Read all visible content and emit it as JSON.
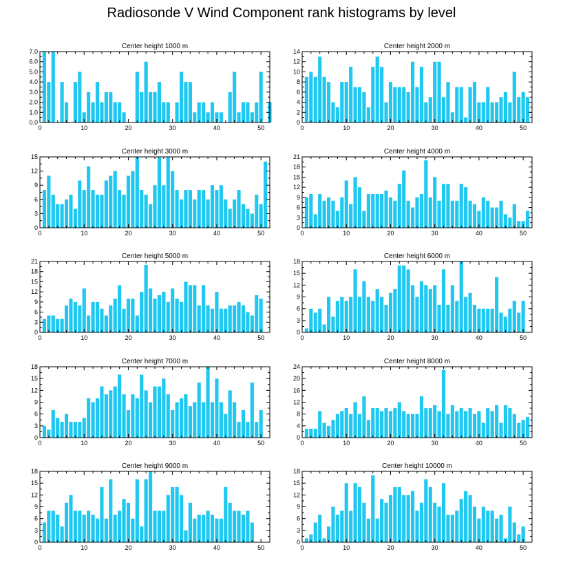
{
  "title": "Radiosonde V Wind Component rank histograms by level",
  "colors": {
    "bar": "#1ec8f0",
    "axis": "#000000"
  },
  "chart_data": [
    {
      "type": "bar",
      "title": "Center height 1000 m",
      "xlim": [
        0,
        52
      ],
      "ylim": [
        0,
        7
      ],
      "yticks": [
        0,
        1,
        2,
        3,
        4,
        5,
        6,
        7
      ],
      "ytick_labels": [
        "0.0",
        "1.0",
        "2.0",
        "3.0",
        "4.0",
        "5.0",
        "6.0",
        "7.0"
      ],
      "xticks": [
        0,
        10,
        20,
        30,
        40,
        50
      ],
      "xtick_labels": [
        "0",
        "10",
        "20",
        "30",
        "40",
        "50"
      ],
      "values": [
        0,
        7,
        4,
        7,
        0,
        4,
        2,
        0,
        4,
        5,
        1,
        3,
        2,
        4,
        2,
        3,
        3,
        2,
        2,
        1,
        0,
        0,
        5,
        3,
        6,
        3,
        3,
        4,
        2,
        2,
        0,
        2,
        5,
        4,
        4,
        1,
        2,
        2,
        1,
        2,
        1,
        1,
        0,
        3,
        5,
        1,
        2,
        2,
        1,
        2,
        5,
        0,
        2
      ]
    },
    {
      "type": "bar",
      "title": "Center height 2000 m",
      "xlim": [
        0,
        52
      ],
      "ylim": [
        0,
        14
      ],
      "yticks": [
        0,
        2,
        4,
        6,
        8,
        10,
        12,
        14
      ],
      "ytick_labels": [
        "0",
        "2",
        "4",
        "6",
        "8",
        "10",
        "12",
        "14"
      ],
      "xticks": [
        0,
        10,
        20,
        30,
        40,
        50
      ],
      "xtick_labels": [
        "0",
        "10",
        "20",
        "30",
        "40",
        "50"
      ],
      "values": [
        0,
        9,
        10,
        9,
        13,
        9,
        8,
        4,
        3,
        8,
        8,
        11,
        7,
        7,
        6,
        3,
        11,
        13,
        11,
        4,
        8,
        7,
        7,
        7,
        6,
        12,
        7,
        11,
        4,
        5,
        12,
        12,
        5,
        8,
        2,
        7,
        7,
        1,
        7,
        8,
        4,
        4,
        7,
        4,
        4,
        5,
        6,
        4,
        10,
        5,
        6,
        5,
        0
      ]
    },
    {
      "type": "bar",
      "title": "Center height 3000 m",
      "xlim": [
        0,
        52
      ],
      "ylim": [
        0,
        15
      ],
      "yticks": [
        0,
        3,
        6,
        9,
        12,
        15
      ],
      "ytick_labels": [
        "0",
        "3",
        "6",
        "9",
        "12",
        "15"
      ],
      "xticks": [
        0,
        10,
        20,
        30,
        40,
        50
      ],
      "xtick_labels": [
        "0",
        "10",
        "20",
        "30",
        "40",
        "50"
      ],
      "values": [
        0,
        8,
        11,
        7,
        5,
        5,
        6,
        7,
        4,
        10,
        8,
        13,
        8,
        7,
        7,
        10,
        11,
        12,
        8,
        7,
        11,
        12,
        15,
        8,
        7,
        5,
        9,
        15,
        9,
        15,
        12,
        8,
        6,
        8,
        8,
        6,
        8,
        8,
        6,
        9,
        8,
        9,
        6,
        4,
        6,
        8,
        5,
        4,
        3,
        7,
        5,
        14,
        0
      ]
    },
    {
      "type": "bar",
      "title": "Center height 4000 m",
      "xlim": [
        0,
        52
      ],
      "ylim": [
        0,
        21
      ],
      "yticks": [
        0,
        3,
        6,
        9,
        12,
        15,
        18,
        21
      ],
      "ytick_labels": [
        "0",
        "3",
        "6",
        "9",
        "12",
        "15",
        "18",
        "21"
      ],
      "xticks": [
        0,
        10,
        20,
        30,
        40,
        50
      ],
      "xtick_labels": [
        "0",
        "10",
        "20",
        "30",
        "40",
        "50"
      ],
      "values": [
        0,
        9,
        10,
        4,
        10,
        8,
        9,
        8,
        5,
        9,
        14,
        7,
        15,
        12,
        5,
        10,
        10,
        10,
        10,
        11,
        9,
        8,
        13,
        17,
        8,
        6,
        9,
        10,
        20,
        9,
        15,
        8,
        13,
        13,
        8,
        8,
        13,
        12,
        8,
        7,
        5,
        9,
        8,
        6,
        6,
        8,
        4,
        3,
        7,
        2,
        2,
        5,
        0
      ]
    },
    {
      "type": "bar",
      "title": "Center height 5000 m",
      "xlim": [
        0,
        52
      ],
      "ylim": [
        0,
        21
      ],
      "yticks": [
        0,
        3,
        6,
        9,
        12,
        15,
        18,
        21
      ],
      "ytick_labels": [
        "0",
        "3",
        "6",
        "9",
        "12",
        "15",
        "18",
        "21"
      ],
      "xticks": [
        0,
        10,
        20,
        30,
        40,
        50
      ],
      "xtick_labels": [
        "0",
        "10",
        "20",
        "30",
        "40",
        "50"
      ],
      "values": [
        0,
        4,
        5,
        5,
        4,
        4,
        8,
        10,
        9,
        8,
        13,
        5,
        9,
        9,
        7,
        5,
        8,
        10,
        14,
        7,
        10,
        10,
        5,
        12,
        20,
        13,
        10,
        11,
        12,
        9,
        13,
        10,
        9,
        15,
        14,
        14,
        8,
        14,
        8,
        7,
        12,
        7,
        7,
        8,
        8,
        9,
        8,
        6,
        5,
        11,
        10,
        0,
        0
      ]
    },
    {
      "type": "bar",
      "title": "Center height 6000 m",
      "xlim": [
        0,
        52
      ],
      "ylim": [
        0,
        18
      ],
      "yticks": [
        0,
        3,
        6,
        9,
        12,
        15,
        18
      ],
      "ytick_labels": [
        "0",
        "3",
        "6",
        "9",
        "12",
        "15",
        "18"
      ],
      "xticks": [
        0,
        10,
        20,
        30,
        40,
        50
      ],
      "xtick_labels": [
        "0",
        "10",
        "20",
        "30",
        "40",
        "50"
      ],
      "values": [
        0,
        1,
        6,
        5,
        6,
        2,
        9,
        4,
        8,
        9,
        8,
        9,
        16,
        9,
        13,
        9,
        8,
        11,
        9,
        7,
        10,
        11,
        17,
        17,
        16,
        12,
        9,
        13,
        12,
        11,
        12,
        7,
        16,
        7,
        12,
        8,
        18,
        9,
        10,
        7,
        6,
        6,
        6,
        6,
        14,
        5,
        4,
        6,
        8,
        5,
        8,
        0,
        0
      ]
    },
    {
      "type": "bar",
      "title": "Center height 7000 m",
      "xlim": [
        0,
        52
      ],
      "ylim": [
        0,
        18
      ],
      "yticks": [
        0,
        3,
        6,
        9,
        12,
        15,
        18
      ],
      "ytick_labels": [
        "0",
        "3",
        "6",
        "9",
        "12",
        "15",
        "18"
      ],
      "xticks": [
        0,
        10,
        20,
        30,
        40,
        50
      ],
      "xtick_labels": [
        "0",
        "10",
        "20",
        "30",
        "40",
        "50"
      ],
      "values": [
        0,
        3,
        2,
        7,
        5,
        4,
        6,
        4,
        4,
        4,
        5,
        10,
        9,
        10,
        13,
        11,
        12,
        13,
        16,
        11,
        7,
        11,
        10,
        16,
        12,
        9,
        13,
        13,
        15,
        11,
        7,
        9,
        10,
        11,
        8,
        9,
        14,
        9,
        18,
        9,
        15,
        9,
        6,
        12,
        9,
        4,
        7,
        4,
        14,
        4,
        7,
        0,
        0
      ]
    },
    {
      "type": "bar",
      "title": "Center height 8000 m",
      "xlim": [
        0,
        52
      ],
      "ylim": [
        0,
        24
      ],
      "yticks": [
        0,
        4,
        8,
        12,
        16,
        20,
        24
      ],
      "ytick_labels": [
        "0",
        "4",
        "8",
        "12",
        "16",
        "20",
        "24"
      ],
      "xticks": [
        0,
        10,
        20,
        30,
        40,
        50
      ],
      "xtick_labels": [
        "0",
        "10",
        "20",
        "30",
        "40",
        "50"
      ],
      "values": [
        0,
        3,
        3,
        3,
        9,
        5,
        4,
        6,
        8,
        9,
        10,
        8,
        12,
        8,
        14,
        6,
        10,
        10,
        9,
        10,
        9,
        10,
        12,
        9,
        8,
        8,
        8,
        14,
        10,
        10,
        11,
        9,
        23,
        8,
        11,
        9,
        10,
        9,
        10,
        8,
        9,
        5,
        10,
        9,
        11,
        5,
        11,
        10,
        8,
        5,
        6,
        7,
        0
      ]
    },
    {
      "type": "bar",
      "title": "Center height 9000 m",
      "xlim": [
        0,
        52
      ],
      "ylim": [
        0,
        18
      ],
      "yticks": [
        0,
        3,
        6,
        9,
        12,
        15,
        18
      ],
      "ytick_labels": [
        "0",
        "3",
        "6",
        "9",
        "12",
        "15",
        "18"
      ],
      "xticks": [
        0,
        10,
        20,
        30,
        40,
        50
      ],
      "xtick_labels": [
        "0",
        "10",
        "20",
        "30",
        "40",
        "50"
      ],
      "values": [
        0,
        5,
        8,
        8,
        7,
        4,
        10,
        12,
        8,
        8,
        7,
        8,
        7,
        6,
        14,
        6,
        16,
        7,
        8,
        11,
        10,
        6,
        16,
        4,
        16,
        18,
        8,
        8,
        8,
        12,
        14,
        14,
        12,
        3,
        10,
        6,
        7,
        7,
        8,
        7,
        6,
        6,
        14,
        10,
        8,
        8,
        7,
        8,
        5,
        0,
        0,
        0,
        0
      ]
    },
    {
      "type": "bar",
      "title": "Center height 10000 m",
      "xlim": [
        0,
        52
      ],
      "ylim": [
        0,
        18
      ],
      "yticks": [
        0,
        3,
        6,
        9,
        12,
        15,
        18
      ],
      "ytick_labels": [
        "0",
        "3",
        "6",
        "9",
        "12",
        "15",
        "18"
      ],
      "xticks": [
        0,
        10,
        20,
        30,
        40,
        50
      ],
      "xtick_labels": [
        "0",
        "10",
        "20",
        "30",
        "40",
        "50"
      ],
      "values": [
        0,
        1,
        2,
        5,
        7,
        1,
        4,
        9,
        7,
        8,
        15,
        8,
        15,
        14,
        10,
        6,
        17,
        6,
        11,
        10,
        12,
        14,
        14,
        12,
        12,
        13,
        8,
        10,
        16,
        14,
        10,
        9,
        15,
        7,
        7,
        8,
        11,
        13,
        12,
        9,
        6,
        9,
        8,
        8,
        6,
        7,
        1,
        9,
        5,
        2,
        4,
        0,
        0
      ]
    }
  ]
}
